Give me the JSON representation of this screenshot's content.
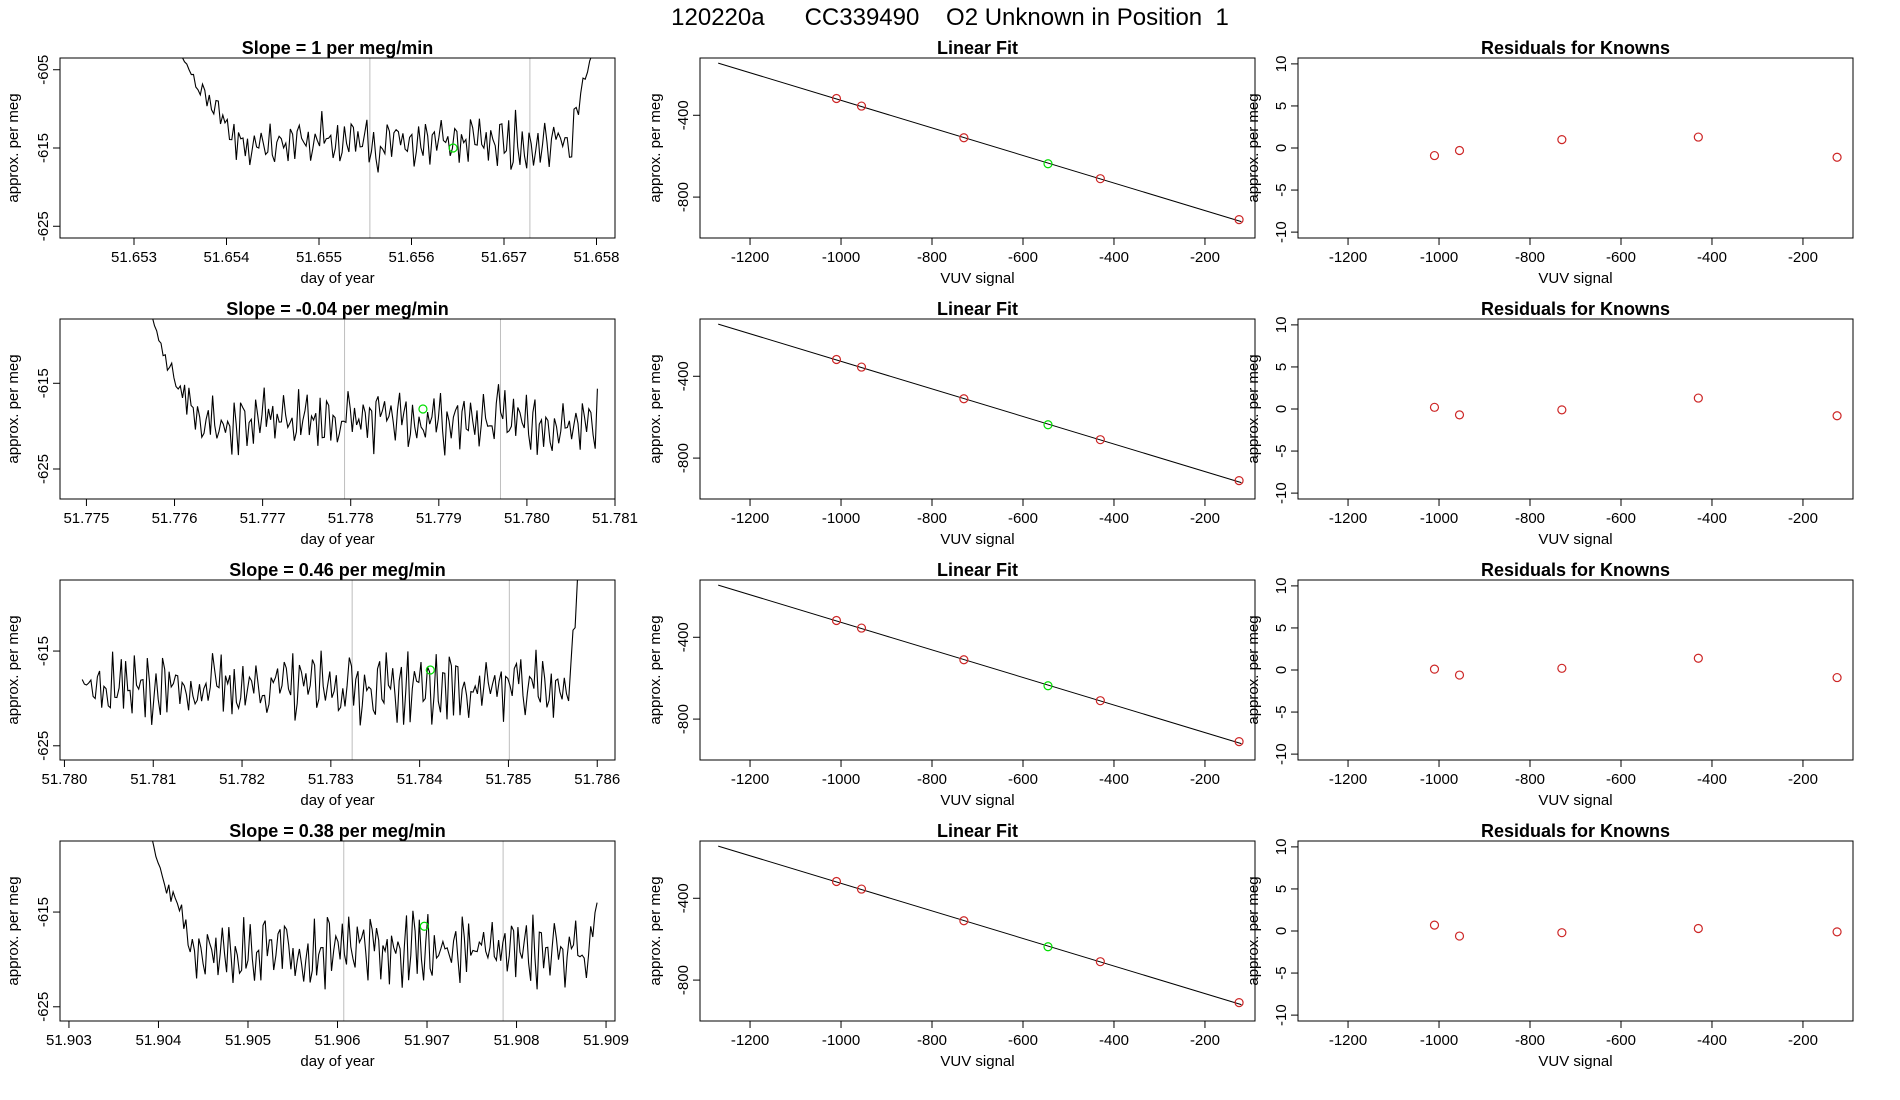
{
  "figure": {
    "title": "120220a      CC339490    O2 Unknown in Position  1"
  },
  "labels": {
    "ts_xlabel": "day of year",
    "ts_ylabel": "approx. per meg",
    "fit_title": "Linear Fit",
    "fit_xlabel": "VUV signal",
    "fit_ylabel": "approx. per meg",
    "res_title": "Residuals for Knowns",
    "res_xlabel": "VUV signal",
    "res_ylabel": "approx. per meg"
  },
  "colors": {
    "line": "#000000",
    "known_point": "#cd2626",
    "unknown_point": "#00dd00",
    "vline": "#bebebe"
  },
  "chart_data": [
    {
      "type": "line",
      "title": "Slope =  1  per meg/min",
      "xlabel": "day of year",
      "ylabel": "approx. per meg",
      "xlim": [
        51.6522,
        51.6582
      ],
      "ylim": [
        -626.5,
        -603.5
      ],
      "xticks": [
        "51.653",
        "51.654",
        "51.655",
        "51.656",
        "51.657",
        "51.658"
      ],
      "yticks": [
        "-605",
        "-615",
        "-625"
      ],
      "seed": 11,
      "series": {
        "start": 51.6534,
        "end": 51.658,
        "n": 190,
        "base": -614.2,
        "amp": 1.9,
        "noise": 2.2,
        "rise_start": 51.6534,
        "rise_from": -598.0,
        "rise_to": -613.0,
        "rise_len": 0.0007,
        "tail_start": 51.6577,
        "tail_to": -601.0
      },
      "vlines": [
        51.65555,
        51.65728
      ],
      "unknown_point": {
        "x": 51.65645,
        "y": -615.0
      }
    },
    {
      "type": "line",
      "title": "Slope =  -0.04  per meg/min",
      "xlabel": "day of year",
      "ylabel": "approx. per meg",
      "xlim": [
        51.7747,
        51.781
      ],
      "ylim": [
        -628.5,
        -607.5
      ],
      "xticks": [
        "51.775",
        "51.776",
        "51.777",
        "51.778",
        "51.779",
        "51.780",
        "51.781"
      ],
      "yticks": [
        "-615",
        "-625"
      ],
      "seed": 23,
      "series": {
        "start": 51.7757,
        "end": 51.7808,
        "n": 210,
        "base": -619.3,
        "amp": 2.0,
        "noise": 2.3,
        "rise_start": 51.7757,
        "rise_from": -604.0,
        "rise_to": -618.0,
        "rise_len": 0.0005,
        "tail_start": 51.7808,
        "tail_to": -623.0
      },
      "vlines": [
        51.77793,
        51.7797
      ],
      "unknown_point": {
        "x": 51.77882,
        "y": -618.0
      }
    },
    {
      "type": "line",
      "title": "Slope =  0.46  per meg/min",
      "xlabel": "day of year",
      "ylabel": "approx. per meg",
      "xlim": [
        51.77995,
        51.7862
      ],
      "ylim": [
        -626.5,
        -607.5
      ],
      "xticks": [
        "51.780",
        "51.781",
        "51.782",
        "51.783",
        "51.784",
        "51.785",
        "51.786"
      ],
      "yticks": [
        "-615",
        "-625"
      ],
      "seed": 37,
      "series": {
        "start": 51.7802,
        "end": 51.7858,
        "n": 230,
        "base": -618.8,
        "amp": 1.9,
        "noise": 2.3,
        "rise_start": 51.7802,
        "rise_from": -618.0,
        "rise_to": -618.8,
        "rise_len": 0.0002,
        "tail_start": 51.7857,
        "tail_to": -604.0
      },
      "vlines": [
        51.78324,
        51.78501
      ],
      "unknown_point": {
        "x": 51.78412,
        "y": -617.0
      }
    },
    {
      "type": "line",
      "title": "Slope =  0.38  per meg/min",
      "xlabel": "day of year",
      "ylabel": "approx. per meg",
      "xlim": [
        51.9029,
        51.9091
      ],
      "ylim": [
        -626.5,
        -607.5
      ],
      "xticks": [
        "51.903",
        "51.904",
        "51.905",
        "51.906",
        "51.907",
        "51.908",
        "51.909"
      ],
      "yticks": [
        "-615",
        "-625"
      ],
      "seed": 51,
      "series": {
        "start": 51.9039,
        "end": 51.9089,
        "n": 210,
        "base": -619.0,
        "amp": 2.0,
        "noise": 2.3,
        "rise_start": 51.9039,
        "rise_from": -605.0,
        "rise_to": -618.0,
        "rise_len": 0.0005,
        "tail_start": 51.9088,
        "tail_to": -614.0
      },
      "vlines": [
        51.90607,
        51.90785
      ],
      "unknown_point": {
        "x": 51.90697,
        "y": -616.5
      }
    },
    {
      "type": "scatter",
      "title": "Linear Fit",
      "xlabel": "VUV signal",
      "ylabel": "approx. per meg",
      "xlim": [
        -1310,
        -90
      ],
      "ylim": [
        -1000,
        -120
      ],
      "xticks": [
        -1200,
        -1000,
        -800,
        -600,
        -400,
        -200
      ],
      "yticks": [
        -400,
        -800
      ],
      "fit_line": {
        "x1": -1270,
        "y1": -145,
        "x2": -120,
        "y2": -920
      },
      "knowns": {
        "x": [
          -1010,
          -955,
          -730,
          -430,
          -125
        ],
        "y": [
          -318,
          -355,
          -510,
          -710,
          -910
        ]
      },
      "unknown": {
        "x": -545,
        "y": -637
      }
    },
    {
      "type": "scatter",
      "title": "Residuals for Knowns",
      "xlabel": "VUV signal",
      "ylabel": "approx. per meg",
      "xlim": [
        -1310,
        -90
      ],
      "ylim": [
        -10.7,
        10.7
      ],
      "xticks": [
        -1200,
        -1000,
        -800,
        -600,
        -400,
        -200
      ],
      "yticks": [
        10,
        5,
        0,
        -5,
        -10
      ],
      "rows": [
        {
          "x": [
            -1010,
            -955,
            -730,
            -430,
            -125
          ],
          "y": [
            -0.9,
            -0.3,
            1.0,
            1.3,
            -1.1
          ]
        },
        {
          "x": [
            -1010,
            -955,
            -730,
            -430,
            -125
          ],
          "y": [
            0.2,
            -0.7,
            -0.1,
            1.3,
            -0.8
          ]
        },
        {
          "x": [
            -1010,
            -955,
            -730,
            -430,
            -125
          ],
          "y": [
            0.1,
            -0.6,
            0.2,
            1.4,
            -0.9
          ]
        },
        {
          "x": [
            -1010,
            -955,
            -730,
            -430,
            -125
          ],
          "y": [
            0.7,
            -0.6,
            -0.2,
            0.3,
            -0.1
          ]
        }
      ]
    }
  ]
}
